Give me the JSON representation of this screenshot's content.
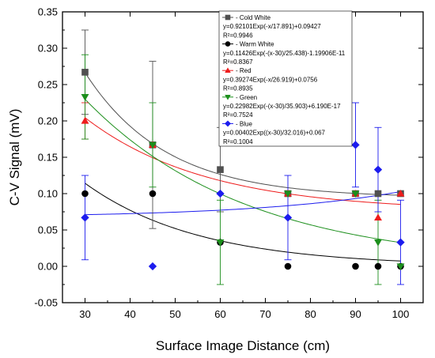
{
  "chart_data": {
    "type": "scatter",
    "xlabel": "Surface Image Distance (cm)",
    "ylabel": "C-V Signal (mV)",
    "xlim": [
      25,
      105
    ],
    "ylim": [
      -0.05,
      0.35
    ],
    "xticks": [
      30,
      40,
      50,
      60,
      70,
      80,
      90,
      100
    ],
    "yticks": [
      -0.05,
      0.0,
      0.05,
      0.1,
      0.15,
      0.2,
      0.25,
      0.3,
      0.35
    ],
    "grid": false,
    "legend_position": "top-right",
    "series": [
      {
        "name": "Cold White",
        "color": "#505050",
        "marker": "square",
        "x": [
          30,
          45,
          60,
          75,
          90,
          95,
          100
        ],
        "y": [
          0.267,
          0.167,
          0.133,
          0.1,
          0.1,
          0.1,
          0.1
        ],
        "err": [
          0.058,
          0.115,
          0.058,
          0,
          0,
          0,
          0
        ],
        "fit": {
          "a": 0.09427,
          "b": 0.92101,
          "x0": 0,
          "t": 17.891
        },
        "equation": "y=0.92101Exp(-x/17.891)+0.09427",
        "r2": "R²=0.9946"
      },
      {
        "name": "Warm White",
        "color": "#000000",
        "marker": "circle",
        "x": [
          30,
          45,
          60,
          75,
          90,
          95,
          100
        ],
        "y": [
          0.1,
          0.1,
          0.033,
          0.0,
          0.0,
          0.0,
          0.0
        ],
        "err": [
          0,
          0,
          0,
          0,
          0,
          0,
          0
        ],
        "fit": {
          "a": 0,
          "b": 0.11426,
          "x0": 30,
          "t": 25.438
        },
        "equation": "y=0.11426Exp(-(x-30)/25.438)-1.19906E-11",
        "r2": "R²=0.8367"
      },
      {
        "name": "Red",
        "color": "#ee1c1c",
        "marker": "triangle-up",
        "x": [
          30,
          45,
          75,
          90,
          95,
          100
        ],
        "y": [
          0.2,
          0.167,
          0.1,
          0.1,
          0.067,
          0.1
        ],
        "err": [
          0.025,
          0,
          0,
          0,
          0,
          0
        ],
        "fit": {
          "a": 0.0756,
          "b": 0.39274,
          "x0": 0,
          "t": 26.919
        },
        "equation": "y=0.39274Exp(-x/26.919)+0.0756",
        "r2": "R²=0.8935"
      },
      {
        "name": "Green",
        "color": "#1c8f1c",
        "marker": "triangle-down",
        "x": [
          30,
          45,
          60,
          75,
          90,
          95,
          100
        ],
        "y": [
          0.233,
          0.167,
          0.033,
          0.1,
          0.1,
          0.033,
          0.0
        ],
        "err": [
          0.058,
          0.058,
          0.058,
          0,
          0,
          0.058,
          0
        ],
        "fit": {
          "a": 0,
          "b": 0.22982,
          "x0": 30,
          "t": 35.903
        },
        "equation": "y=0.22982Exp(-(x-30)/35.903)+6.190E-17",
        "r2": "R²=0.7524"
      },
      {
        "name": "Blue",
        "color": "#1c1cee",
        "marker": "diamond",
        "x": [
          30,
          45,
          60,
          75,
          90,
          95,
          100
        ],
        "y": [
          0.067,
          0.0,
          0.1,
          0.067,
          0.167,
          0.133,
          0.033
        ],
        "err": [
          0.058,
          0,
          0,
          0.058,
          0.058,
          0.058,
          0.058
        ],
        "fit": {
          "a": 0.067,
          "b": 0.00402,
          "x0": 30,
          "t": -32.016
        },
        "equation": "y=0.00402Exp((x-30)/32.016)+0.067",
        "r2": "R²=0.1004"
      }
    ]
  }
}
